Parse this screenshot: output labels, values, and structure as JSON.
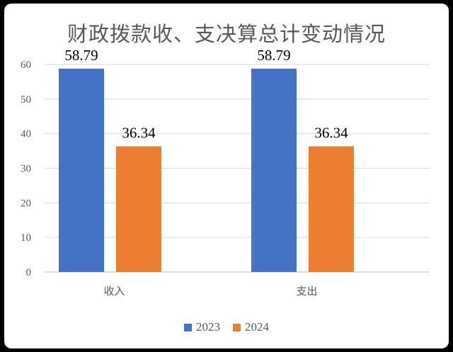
{
  "chart_data": {
    "type": "bar",
    "title": "财政拨款收、支决算总计变动情况",
    "categories": [
      "收入",
      "支出"
    ],
    "series": [
      {
        "name": "2023",
        "values": [
          58.79,
          58.79
        ],
        "color": "#4472C4"
      },
      {
        "name": "2024",
        "values": [
          36.34,
          36.34
        ],
        "color": "#ED7D31"
      }
    ],
    "ylim": [
      0,
      60
    ],
    "yticks": [
      0,
      10,
      20,
      30,
      40,
      50,
      60
    ],
    "grid": true,
    "legend": "bottom",
    "data_labels": true
  }
}
